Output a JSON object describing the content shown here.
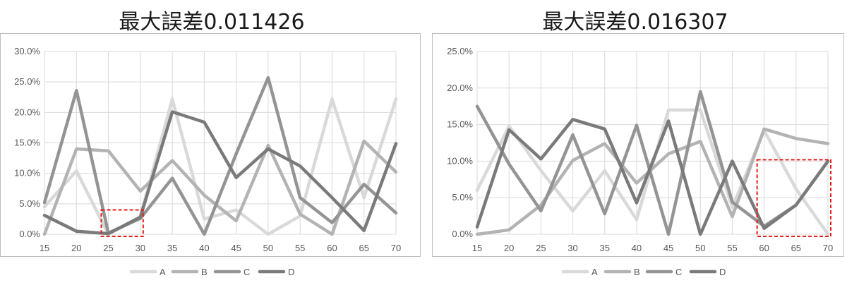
{
  "titles": [
    "最大誤差0.011426",
    "最大誤差0.016307"
  ],
  "chart_data": [
    {
      "type": "line",
      "title": "最大誤差0.011426",
      "x": [
        15,
        20,
        25,
        30,
        35,
        40,
        45,
        50,
        55,
        60,
        65,
        70
      ],
      "ylim": [
        0,
        0.3
      ],
      "yticks": [
        "0.0%",
        "5.0%",
        "10.0%",
        "15.0%",
        "20.0%",
        "25.0%",
        "30.0%"
      ],
      "grid": true,
      "legend": "bottom",
      "series": [
        {
          "name": "A",
          "color": "#d9d9d9",
          "values": [
            0.045,
            0.104,
            0.0,
            0.029,
            0.222,
            0.025,
            0.04,
            0.0,
            0.03,
            0.222,
            0.06,
            0.222
          ]
        },
        {
          "name": "B",
          "color": "#b3b3b3",
          "values": [
            0.0,
            0.14,
            0.137,
            0.071,
            0.121,
            0.064,
            0.022,
            0.146,
            0.033,
            0.0,
            0.153,
            0.102
          ]
        },
        {
          "name": "C",
          "color": "#949494",
          "values": [
            0.052,
            0.236,
            0.002,
            0.026,
            0.092,
            0.0,
            0.132,
            0.257,
            0.06,
            0.019,
            0.082,
            0.035
          ]
        },
        {
          "name": "D",
          "color": "#7a7a7a",
          "values": [
            0.031,
            0.005,
            0.001,
            0.028,
            0.201,
            0.184,
            0.093,
            0.14,
            0.112,
            0.06,
            0.006,
            0.149
          ]
        }
      ],
      "highlight": {
        "x": [
          25,
          30
        ],
        "y": [
          0,
          0.04
        ],
        "color": "#e0201b"
      }
    },
    {
      "type": "line",
      "title": "最大誤差0.016307",
      "x": [
        15,
        20,
        25,
        30,
        35,
        40,
        45,
        50,
        55,
        60,
        65,
        70
      ],
      "ylim": [
        0,
        0.25
      ],
      "yticks": [
        "0.0%",
        "5.0%",
        "10.0%",
        "15.0%",
        "20.0%",
        "25.0%"
      ],
      "grid": true,
      "legend": "bottom",
      "series": [
        {
          "name": "A",
          "color": "#d9d9d9",
          "values": [
            0.06,
            0.148,
            0.087,
            0.032,
            0.087,
            0.02,
            0.17,
            0.17,
            0.037,
            0.142,
            0.062,
            0.0
          ]
        },
        {
          "name": "B",
          "color": "#b3b3b3",
          "values": [
            0.0,
            0.006,
            0.04,
            0.101,
            0.124,
            0.07,
            0.11,
            0.127,
            0.024,
            0.144,
            0.131,
            0.124
          ]
        },
        {
          "name": "C",
          "color": "#949494",
          "values": [
            0.175,
            0.096,
            0.032,
            0.136,
            0.028,
            0.149,
            0.0,
            0.195,
            0.044,
            0.011,
            0.04,
            0.1
          ]
        },
        {
          "name": "D",
          "color": "#7a7a7a",
          "values": [
            0.01,
            0.143,
            0.103,
            0.157,
            0.144,
            0.043,
            0.155,
            0.0,
            0.1,
            0.008,
            0.04,
            0.1
          ]
        }
      ],
      "highlight": {
        "x": [
          60,
          70
        ],
        "y": [
          0,
          0.102
        ],
        "color": "#e0201b"
      }
    }
  ]
}
